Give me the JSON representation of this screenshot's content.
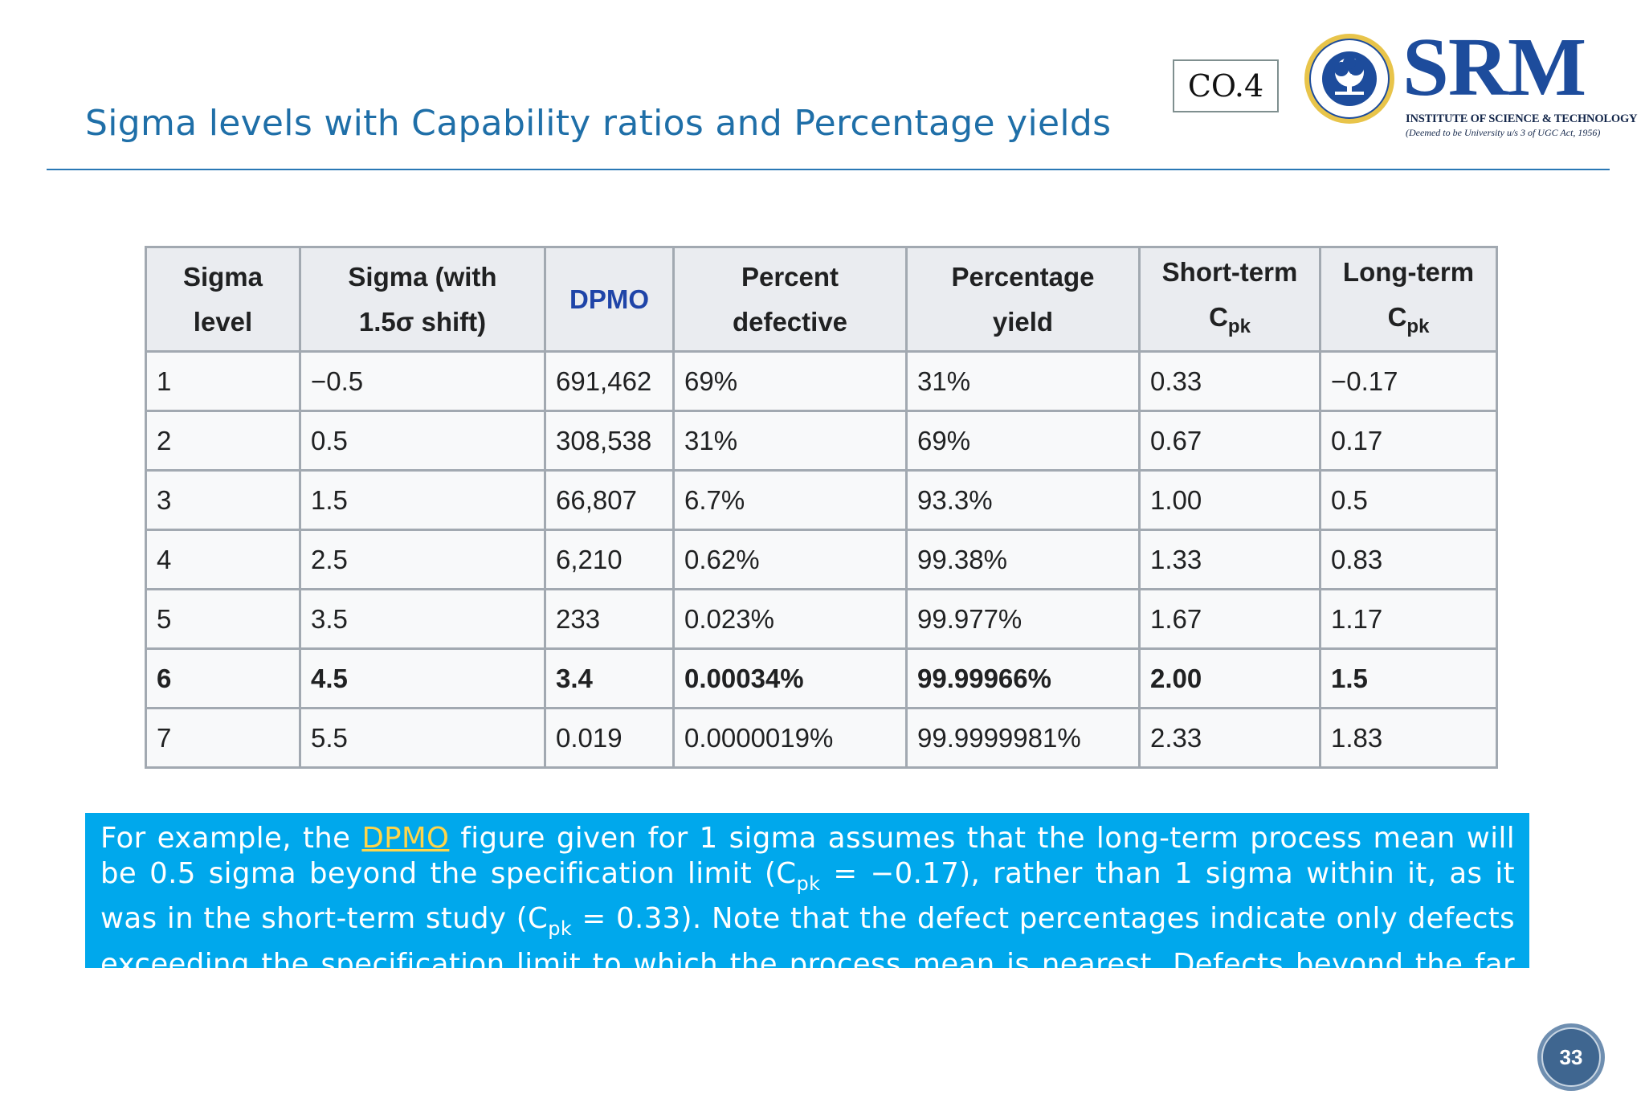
{
  "slide": {
    "title": "Sigma levels with Capability ratios and Percentage yields",
    "co_label": "CO.4",
    "page_number": "33"
  },
  "logo": {
    "name": "SRM",
    "subtitle": "INSTITUTE OF SCIENCE & TECHNOLOGY",
    "tagline": "(Deemed to be University u/s 3 of UGC Act, 1956)",
    "seal_text": "SRM INSTITUTE OF SCIENCE AND TECHNOLOGY"
  },
  "table": {
    "headers": [
      {
        "line1": "Sigma",
        "line2": "level"
      },
      {
        "line1": "Sigma (with",
        "line2": "1.5σ shift)"
      },
      {
        "line1": "DPMO",
        "line2": ""
      },
      {
        "line1": "Percent",
        "line2": "defective"
      },
      {
        "line1": "Percentage",
        "line2": "yield"
      },
      {
        "line1": "Short-term",
        "line2": "C",
        "sub": "pk"
      },
      {
        "line1": "Long-term",
        "line2": "C",
        "sub": "pk"
      }
    ],
    "rows": [
      [
        "1",
        "−0.5",
        "691,462",
        "69%",
        "31%",
        "0.33",
        "−0.17"
      ],
      [
        "2",
        "0.5",
        "308,538",
        "31%",
        "69%",
        "0.67",
        "0.17"
      ],
      [
        "3",
        "1.5",
        "66,807",
        "6.7%",
        "93.3%",
        "1.00",
        "0.5"
      ],
      [
        "4",
        "2.5",
        "6,210",
        "0.62%",
        "99.38%",
        "1.33",
        "0.83"
      ],
      [
        "5",
        "3.5",
        "233",
        "0.023%",
        "99.977%",
        "1.67",
        "1.17"
      ],
      [
        "6",
        "4.5",
        "3.4",
        "0.00034%",
        "99.99966%",
        "2.00",
        "1.5"
      ],
      [
        "7",
        "5.5",
        "0.019",
        "0.0000019%",
        "99.9999981%",
        "2.33",
        "1.83"
      ]
    ]
  },
  "note": {
    "p1": "For example, the ",
    "link": "DPMO",
    "p2": " figure given for 1 sigma assumes that the long-term process mean will be 0.5 sigma beyond the specification limit (C",
    "sub1": "pk",
    "p3": " = −0.17), rather than 1 sigma within it, as it was in the short-term study (C",
    "sub2": "pk",
    "p4": " = 0.33). Note that the defect percentages indicate only defects exceeding the specification limit to which the process mean is nearest. Defects beyond the far specification limit are not included in the percentages."
  },
  "colors": {
    "title": "#1f6fa8",
    "note_bg": "#00a8ec",
    "link": "#ffd54a",
    "brand": "#1d4c9c"
  }
}
